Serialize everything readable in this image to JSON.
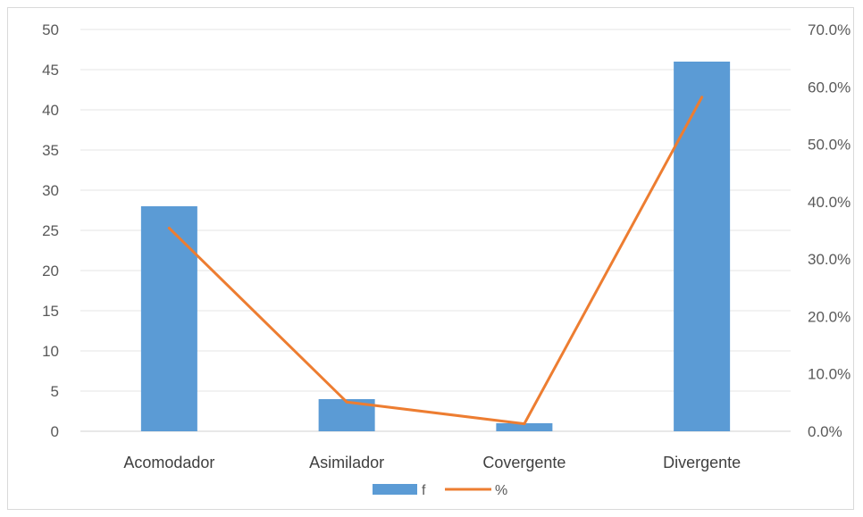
{
  "chart_data": {
    "type": "bar",
    "categories": [
      "Acomodador",
      "Asimilador",
      "Covergente",
      "Divergente"
    ],
    "series": [
      {
        "name": "f",
        "type": "bar",
        "axis": "left",
        "values": [
          28,
          4,
          1,
          46
        ],
        "color": "#5b9bd5"
      },
      {
        "name": "%",
        "type": "line",
        "axis": "right",
        "values": [
          35.4,
          5.1,
          1.3,
          58.2
        ],
        "color": "#ed7d31"
      }
    ],
    "y_left": {
      "ylim": [
        0,
        50
      ],
      "ticks": [
        "0",
        "5",
        "10",
        "15",
        "20",
        "25",
        "30",
        "35",
        "40",
        "45",
        "50"
      ]
    },
    "y_right": {
      "ylim": [
        0,
        70
      ],
      "ticks": [
        "0.0%",
        "10.0%",
        "20.0%",
        "30.0%",
        "40.0%",
        "50.0%",
        "60.0%",
        "70.0%"
      ]
    },
    "grid": true,
    "legend": "bottom-center",
    "title": "",
    "xlabel": "",
    "ylabel": ""
  }
}
